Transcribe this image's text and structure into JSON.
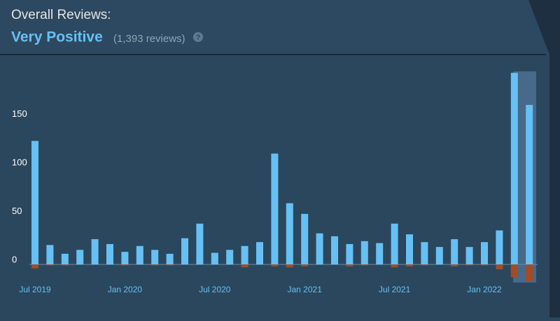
{
  "header": {
    "title": "Overall Reviews:",
    "rating": "Very Positive",
    "count": "(1,393 reviews)",
    "help": "?"
  },
  "chart_data": {
    "type": "bar",
    "categories": [
      "Jul 2019",
      null,
      null,
      null,
      null,
      null,
      "Jan 2020",
      null,
      null,
      null,
      null,
      null,
      "Jul 2020",
      null,
      null,
      null,
      null,
      null,
      "Jan 2021",
      null,
      null,
      null,
      null,
      null,
      "Jul 2021",
      null,
      null,
      null,
      null,
      null,
      "Jan 2022",
      null,
      null,
      null
    ],
    "series": [
      {
        "color": "#66c0f4",
        "values": [
          127,
          20,
          11,
          15,
          26,
          21,
          13,
          19,
          15,
          11,
          27,
          42,
          12,
          15,
          19,
          23,
          114,
          63,
          52,
          32,
          29,
          21,
          24,
          22,
          42,
          31,
          23,
          18,
          26,
          18,
          23,
          35,
          197,
          164
        ]
      },
      {
        "color": "#a34c25",
        "values": [
          -4,
          -1,
          -1,
          0,
          0,
          0,
          -1,
          0,
          -1,
          -1,
          0,
          0,
          0,
          0,
          -3,
          0,
          -2,
          -3,
          -2,
          0,
          0,
          -2,
          -1,
          0,
          -3,
          -2,
          -1,
          0,
          -2,
          -1,
          -1,
          -5,
          -13,
          -17
        ]
      }
    ],
    "ylim": [
      -20,
      200
    ],
    "yticks": [
      0,
      50,
      100,
      150
    ]
  }
}
